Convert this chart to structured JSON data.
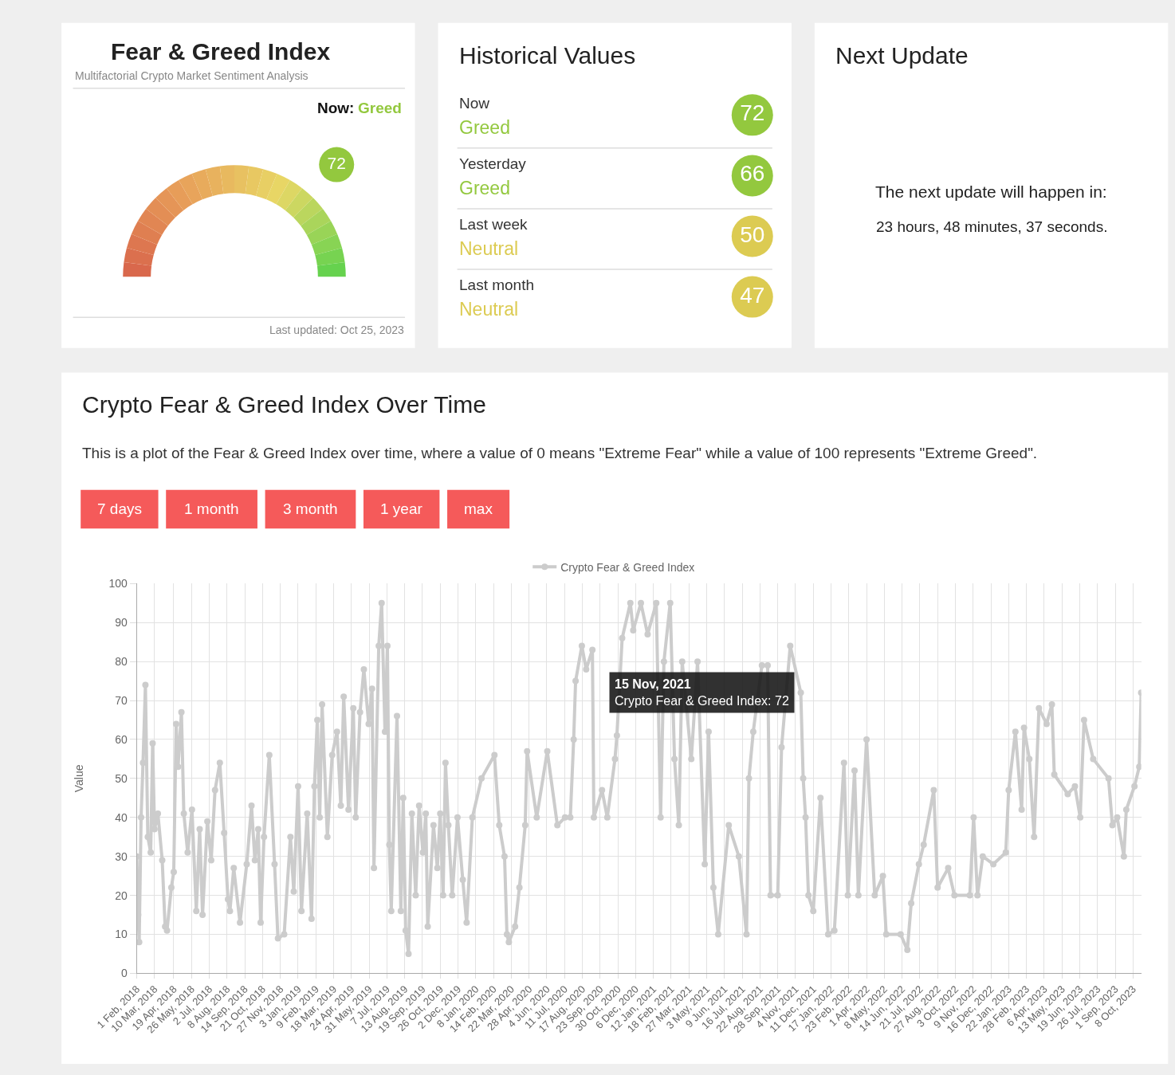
{
  "chart_data": [
    {
      "type": "other",
      "title": "Fear & Greed Index",
      "subtitle": "Multifactorial Crypto Market Sentiment Analysis",
      "annotations": [
        "Now:",
        "Greed",
        "Last updated: Oct 25, 2023"
      ],
      "values": [
        72
      ],
      "colors": [
        "#93c83e"
      ],
      "data_labels": true
    },
    {
      "type": "other",
      "title": "Historical Values",
      "categories": [
        "Now",
        "Yesterday",
        "Last week",
        "Last month"
      ],
      "series": [
        {
          "color": "#93c83e",
          "values": [
            72,
            66,
            null,
            null
          ]
        },
        {
          "color": "#dccb52",
          "values": [
            null,
            null,
            50,
            47
          ]
        }
      ],
      "data_labels": true,
      "annotations": [
        "Greed",
        "Greed",
        "Neutral",
        "Neutral"
      ]
    },
    {
      "type": "other",
      "title": "Next Update",
      "annotations": [
        "The next update will happen in:",
        "23 hours, 48 minutes, 37 seconds."
      ]
    },
    {
      "type": "line",
      "title": "Crypto Fear & Greed Index Over Time",
      "subtitle": "This is a plot of the Fear & Greed Index over time, where a value of 0 means \"Extreme Fear\" while a value of 100 represents \"Extreme Greed\".",
      "annotations": [
        "7 days",
        "1 month",
        "3 month",
        "1 year",
        "max",
        {
          "text": "15 Nov, 2021\nCrypto Fear & Greed Index: 72",
          "x": "2021-11-15",
          "y": 72
        }
      ],
      "ylabel": "Value",
      "xlim": [
        "2018-02-01",
        "2023-10-25"
      ],
      "ylim": [
        0,
        100
      ],
      "yticks": [
        0,
        10,
        20,
        30,
        40,
        50,
        60,
        70,
        80,
        90,
        100
      ],
      "grid": true,
      "legend": "top",
      "marker": "circle",
      "xticks": [
        {
          "value": "2018-02-01",
          "label": "1 Feb, 2018"
        },
        {
          "value": "2018-03-10",
          "label": "10 Mar, 2018"
        },
        {
          "value": "2018-04-19",
          "label": "19 Apr, 2018"
        },
        {
          "value": "2018-05-26",
          "label": "26 May, 2018"
        },
        {
          "value": "2018-07-02",
          "label": "2 Jul, 2018"
        },
        {
          "value": "2018-08-08",
          "label": "8 Aug, 2018"
        },
        {
          "value": "2018-09-14",
          "label": "14 Sep, 2018"
        },
        {
          "value": "2018-10-21",
          "label": "21 Oct, 2018"
        },
        {
          "value": "2018-11-27",
          "label": "27 Nov, 2018"
        },
        {
          "value": "2019-01-03",
          "label": "3 Jan, 2019"
        },
        {
          "value": "2019-02-09",
          "label": "9 Feb, 2019"
        },
        {
          "value": "2019-03-18",
          "label": "18 Mar, 2019"
        },
        {
          "value": "2019-04-24",
          "label": "24 Apr, 2019"
        },
        {
          "value": "2019-05-31",
          "label": "31 May, 2019"
        },
        {
          "value": "2019-07-07",
          "label": "7 Jul, 2019"
        },
        {
          "value": "2019-08-13",
          "label": "13 Aug, 2019"
        },
        {
          "value": "2019-09-19",
          "label": "19 Sep, 2019"
        },
        {
          "value": "2019-10-26",
          "label": "26 Oct, 2019"
        },
        {
          "value": "2019-12-02",
          "label": "2 Dec, 2019"
        },
        {
          "value": "2020-01-08",
          "label": "8 Jan, 2020"
        },
        {
          "value": "2020-02-14",
          "label": "14 Feb, 2020"
        },
        {
          "value": "2020-03-22",
          "label": "22 Mar, 2020"
        },
        {
          "value": "2020-04-28",
          "label": "28 Apr, 2020"
        },
        {
          "value": "2020-06-04",
          "label": "4 Jun, 2020"
        },
        {
          "value": "2020-07-11",
          "label": "11 Jul, 2020"
        },
        {
          "value": "2020-08-17",
          "label": "17 Aug, 2020"
        },
        {
          "value": "2020-09-23",
          "label": "23 Sep, 2020"
        },
        {
          "value": "2020-10-30",
          "label": "30 Oct, 2020"
        },
        {
          "value": "2020-12-06",
          "label": "6 Dec, 2020"
        },
        {
          "value": "2021-01-12",
          "label": "12 Jan, 2021"
        },
        {
          "value": "2021-02-18",
          "label": "18 Feb, 2021"
        },
        {
          "value": "2021-03-27",
          "label": "27 Mar, 2021"
        },
        {
          "value": "2021-05-03",
          "label": "3 May, 2021"
        },
        {
          "value": "2021-06-09",
          "label": "9 Jun, 2021"
        },
        {
          "value": "2021-07-16",
          "label": "16 Jul, 2021"
        },
        {
          "value": "2021-08-22",
          "label": "22 Aug, 2021"
        },
        {
          "value": "2021-09-28",
          "label": "28 Sep, 2021"
        },
        {
          "value": "2021-11-04",
          "label": "4 Nov, 2021"
        },
        {
          "value": "2021-12-11",
          "label": "11 Dec, 2021"
        },
        {
          "value": "2022-01-17",
          "label": "17 Jan, 2022"
        },
        {
          "value": "2022-02-23",
          "label": "23 Feb, 2022"
        },
        {
          "value": "2022-04-01",
          "label": "1 Apr, 2022"
        },
        {
          "value": "2022-05-08",
          "label": "8 May, 2022"
        },
        {
          "value": "2022-06-14",
          "label": "14 Jun, 2022"
        },
        {
          "value": "2022-07-21",
          "label": "21 Jul, 2022"
        },
        {
          "value": "2022-08-27",
          "label": "27 Aug, 2022"
        },
        {
          "value": "2022-10-03",
          "label": "3 Oct, 2022"
        },
        {
          "value": "2022-11-09",
          "label": "9 Nov, 2022"
        },
        {
          "value": "2022-12-16",
          "label": "16 Dec, 2022"
        },
        {
          "value": "2023-01-22",
          "label": "22 Jan, 2023"
        },
        {
          "value": "2023-02-28",
          "label": "28 Feb, 2023"
        },
        {
          "value": "2023-04-06",
          "label": "6 Apr, 2023"
        },
        {
          "value": "2023-05-13",
          "label": "13 May, 2023"
        },
        {
          "value": "2023-06-19",
          "label": "19 Jun, 2023"
        },
        {
          "value": "2023-07-26",
          "label": "26 Jul, 2023"
        },
        {
          "value": "2023-09-01",
          "label": "1 Sep, 2023"
        },
        {
          "value": "2023-10-08",
          "label": "8 Oct, 2023"
        }
      ],
      "series": [
        {
          "name": "Crypto Fear & Greed Index",
          "color": "#cccccc",
          "x": [
            "2018-02-01",
            "2018-02-04",
            "2018-02-06",
            "2018-02-10",
            "2018-02-14",
            "2018-02-19",
            "2018-02-24",
            "2018-03-02",
            "2018-03-06",
            "2018-03-10",
            "2018-03-17",
            "2018-03-26",
            "2018-04-01",
            "2018-04-05",
            "2018-04-14",
            "2018-04-19",
            "2018-04-24",
            "2018-04-28",
            "2018-05-05",
            "2018-05-10",
            "2018-05-18",
            "2018-05-27",
            "2018-06-05",
            "2018-06-12",
            "2018-06-18",
            "2018-06-28",
            "2018-07-06",
            "2018-07-14",
            "2018-07-24",
            "2018-08-02",
            "2018-08-10",
            "2018-08-14",
            "2018-08-22",
            "2018-09-04",
            "2018-09-18",
            "2018-09-28",
            "2018-10-05",
            "2018-10-12",
            "2018-10-17",
            "2018-10-24",
            "2018-11-04",
            "2018-11-15",
            "2018-11-22",
            "2018-12-05",
            "2018-12-18",
            "2018-12-25",
            "2019-01-03",
            "2019-01-10",
            "2019-01-22",
            "2019-01-31",
            "2019-02-06",
            "2019-02-12",
            "2019-02-17",
            "2019-02-22",
            "2019-03-05",
            "2019-03-15",
            "2019-03-25",
            "2019-04-02",
            "2019-04-08",
            "2019-04-18",
            "2019-04-28",
            "2019-05-03",
            "2019-05-12",
            "2019-05-20",
            "2019-05-30",
            "2019-06-06",
            "2019-06-10",
            "2019-06-20",
            "2019-06-26",
            "2019-07-03",
            "2019-07-08",
            "2019-07-12",
            "2019-07-16",
            "2019-07-28",
            "2019-08-05",
            "2019-08-10",
            "2019-08-15",
            "2019-08-21",
            "2019-08-28",
            "2019-09-05",
            "2019-09-12",
            "2019-09-20",
            "2019-09-26",
            "2019-09-30",
            "2019-10-12",
            "2019-10-20",
            "2019-10-26",
            "2019-11-01",
            "2019-11-06",
            "2019-11-12",
            "2019-11-20",
            "2019-12-01",
            "2019-12-12",
            "2019-12-20",
            "2020-01-01",
            "2020-01-20",
            "2020-02-16",
            "2020-02-26",
            "2020-03-08",
            "2020-03-13",
            "2020-03-17",
            "2020-03-30",
            "2020-04-08",
            "2020-04-20",
            "2020-04-24",
            "2020-05-14",
            "2020-06-05",
            "2020-06-26",
            "2020-07-12",
            "2020-07-23",
            "2020-07-30",
            "2020-08-03",
            "2020-08-16",
            "2020-08-25",
            "2020-09-07",
            "2020-09-10",
            "2020-09-27",
            "2020-10-08",
            "2020-10-24",
            "2020-10-28",
            "2020-11-08",
            "2020-11-25",
            "2020-12-01",
            "2020-12-17",
            "2020-12-31",
            "2021-01-18",
            "2021-01-27",
            "2021-02-03",
            "2021-02-16",
            "2021-02-25",
            "2021-03-06",
            "2021-03-13",
            "2021-04-01",
            "2021-04-14",
            "2021-04-29",
            "2021-05-07",
            "2021-05-17",
            "2021-05-27",
            "2021-06-18",
            "2021-07-09",
            "2021-07-25",
            "2021-07-30",
            "2021-08-08",
            "2021-08-26",
            "2021-09-07",
            "2021-09-13",
            "2021-09-28",
            "2021-10-06",
            "2021-10-24",
            "2021-11-15",
            "2021-11-20",
            "2021-11-25",
            "2021-12-01",
            "2021-12-11",
            "2021-12-26",
            "2022-01-11",
            "2022-01-24",
            "2022-02-13",
            "2022-02-21",
            "2022-03-07",
            "2022-03-15",
            "2022-04-01",
            "2022-04-18",
            "2022-05-05",
            "2022-05-12",
            "2022-06-11",
            "2022-06-25",
            "2022-07-03",
            "2022-07-19",
            "2022-07-29",
            "2022-08-19",
            "2022-08-27",
            "2022-09-18",
            "2022-10-01",
            "2022-11-02",
            "2022-11-10",
            "2022-11-18",
            "2022-11-29",
            "2022-12-21",
            "2023-01-16",
            "2023-01-22",
            "2023-02-05",
            "2023-02-18",
            "2023-02-23",
            "2023-03-06",
            "2023-03-16",
            "2023-03-26",
            "2023-04-11",
            "2023-04-22",
            "2023-04-27",
            "2023-05-25",
            "2023-06-09",
            "2023-06-20",
            "2023-06-28",
            "2023-07-17",
            "2023-08-18",
            "2023-08-26",
            "2023-09-05",
            "2023-09-19",
            "2023-09-24",
            "2023-10-11",
            "2023-10-21",
            "2023-10-25"
          ],
          "values": [
            30,
            15,
            8,
            40,
            54,
            74,
            35,
            31,
            59,
            37,
            41,
            29,
            12,
            11,
            22,
            26,
            64,
            53,
            67,
            41,
            31,
            42,
            16,
            37,
            15,
            39,
            29,
            47,
            54,
            36,
            19,
            16,
            27,
            13,
            28,
            43,
            29,
            37,
            13,
            35,
            56,
            28,
            9,
            10,
            35,
            21,
            48,
            16,
            41,
            14,
            48,
            65,
            40,
            69,
            35,
            56,
            62,
            43,
            71,
            42,
            68,
            40,
            67,
            78,
            64,
            73,
            27,
            84,
            95,
            62,
            84,
            33,
            16,
            66,
            16,
            45,
            11,
            5,
            41,
            20,
            43,
            31,
            41,
            12,
            38,
            27,
            41,
            20,
            54,
            38,
            20,
            40,
            24,
            13,
            40,
            50,
            56,
            38,
            30,
            10,
            8,
            12,
            22,
            38,
            57,
            40,
            57,
            38,
            40,
            40,
            60,
            75,
            84,
            78,
            83,
            40,
            47,
            40,
            55,
            61,
            86,
            95,
            88,
            95,
            87,
            95,
            40,
            80,
            95,
            55,
            38,
            80,
            55,
            80,
            28,
            62,
            22,
            10,
            38,
            30,
            10,
            50,
            62,
            79,
            79,
            20,
            20,
            58,
            84,
            72,
            50,
            40,
            20,
            16,
            45,
            10,
            11,
            54,
            20,
            52,
            20,
            60,
            20,
            25,
            10,
            10,
            6,
            18,
            28,
            33,
            47,
            22,
            27,
            20,
            20,
            40,
            20,
            30,
            28,
            31,
            47,
            62,
            42,
            63,
            55,
            35,
            68,
            64,
            69,
            51,
            46,
            48,
            40,
            65,
            55,
            50,
            38,
            40,
            30,
            42,
            48,
            53,
            72
          ]
        }
      ]
    }
  ]
}
